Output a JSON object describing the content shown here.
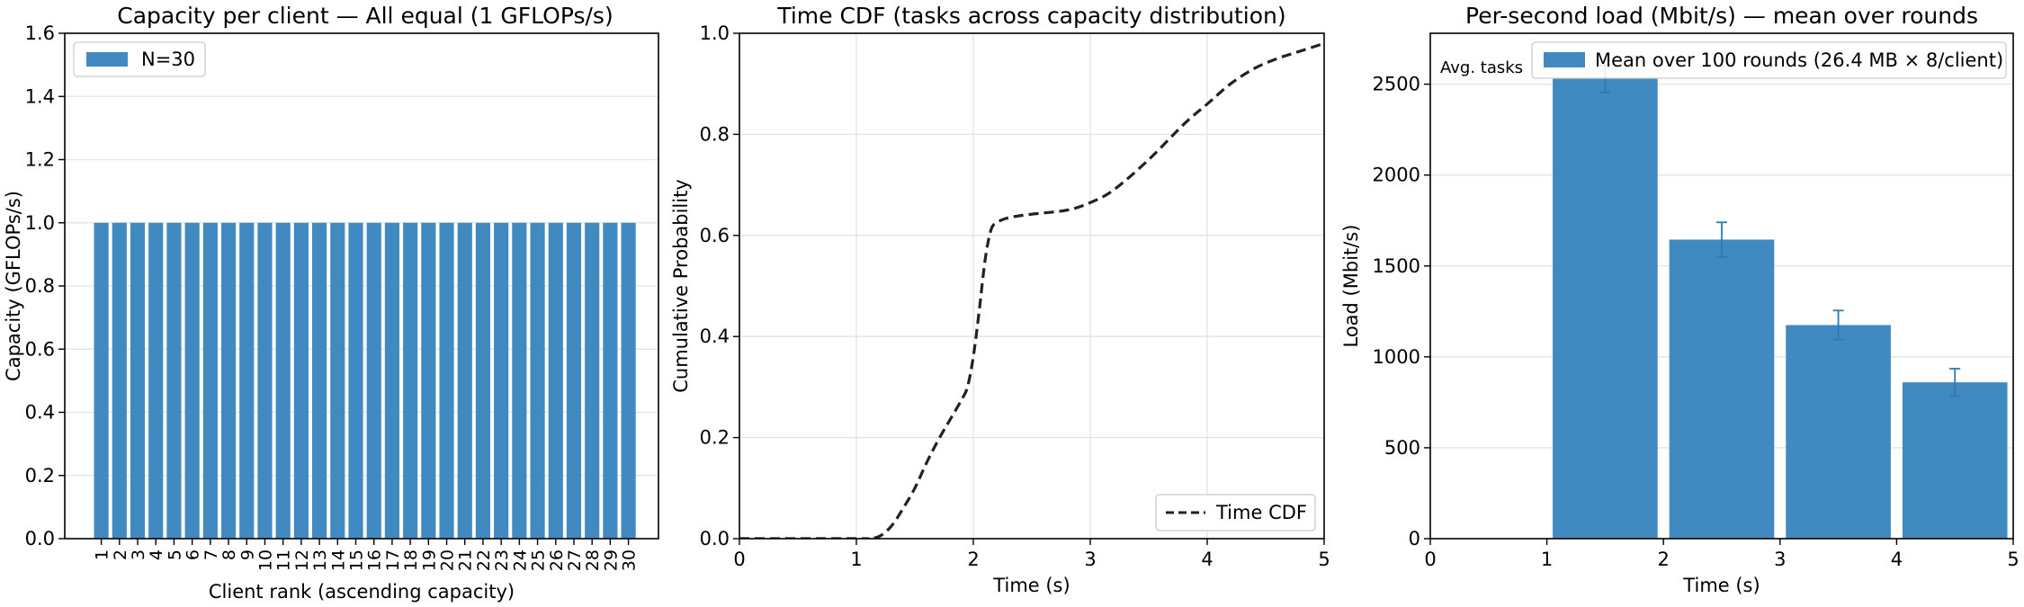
{
  "chart_data": [
    {
      "type": "bar",
      "title": "Capacity per client — All equal (1 GFLOPs/s)",
      "xlabel": "Client rank (ascending capacity)",
      "ylabel": "Capacity (GFLOPs/s)",
      "categories": [
        "1",
        "2",
        "3",
        "4",
        "5",
        "6",
        "7",
        "8",
        "9",
        "10",
        "11",
        "12",
        "13",
        "14",
        "15",
        "16",
        "17",
        "18",
        "19",
        "20",
        "21",
        "22",
        "23",
        "24",
        "25",
        "26",
        "27",
        "28",
        "29",
        "30"
      ],
      "series": [
        {
          "name": "N=30",
          "values": [
            1,
            1,
            1,
            1,
            1,
            1,
            1,
            1,
            1,
            1,
            1,
            1,
            1,
            1,
            1,
            1,
            1,
            1,
            1,
            1,
            1,
            1,
            1,
            1,
            1,
            1,
            1,
            1,
            1,
            1
          ]
        }
      ],
      "ylim": [
        0,
        1.6
      ],
      "yticks": [
        0.0,
        0.2,
        0.4,
        0.6,
        0.8,
        1.0,
        1.2,
        1.4,
        1.6
      ],
      "ytick_labels": [
        "0.0",
        "0.2",
        "0.4",
        "0.6",
        "0.8",
        "1.0",
        "1.2",
        "1.4",
        "1.6"
      ],
      "grid": "y",
      "legend": "top-left",
      "color": "#4189c1"
    },
    {
      "type": "line",
      "title": "Time CDF (tasks across capacity distribution)",
      "xlabel": "Time (s)",
      "ylabel": "Cumulative Probability",
      "xlim": [
        0,
        5
      ],
      "ylim": [
        0,
        1.0
      ],
      "xticks": [
        0,
        1,
        2,
        3,
        4,
        5
      ],
      "xtick_labels": [
        "0",
        "1",
        "2",
        "3",
        "4",
        "5"
      ],
      "yticks": [
        0.0,
        0.2,
        0.4,
        0.6,
        0.8,
        1.0
      ],
      "ytick_labels": [
        "0.0",
        "0.2",
        "0.4",
        "0.6",
        "0.8",
        "1.0"
      ],
      "series": [
        {
          "name": "Time CDF",
          "x": [
            0,
            1.0,
            1.1,
            1.2,
            1.3,
            1.4,
            1.5,
            1.6,
            1.7,
            1.8,
            1.9,
            1.95,
            2.0,
            2.05,
            2.1,
            2.15,
            2.2,
            2.3,
            2.5,
            2.8,
            3.0,
            3.2,
            3.5,
            3.8,
            4.0,
            4.2,
            4.4,
            4.6,
            4.8,
            5.0
          ],
          "y": [
            0,
            0,
            0.0,
            0.005,
            0.025,
            0.06,
            0.1,
            0.15,
            0.195,
            0.235,
            0.275,
            0.3,
            0.36,
            0.45,
            0.55,
            0.61,
            0.625,
            0.635,
            0.642,
            0.65,
            0.665,
            0.69,
            0.75,
            0.82,
            0.86,
            0.9,
            0.93,
            0.95,
            0.965,
            0.98
          ]
        }
      ],
      "grid": "both",
      "legend": "bottom-right",
      "color": "#222222"
    },
    {
      "type": "bar",
      "title": "Per-second load (Mbit/s) — mean over rounds",
      "xlabel": "Time (s)",
      "ylabel": "Load (Mbit/s)",
      "bins": [
        [
          0,
          1
        ],
        [
          1,
          2
        ],
        [
          2,
          3
        ],
        [
          3,
          4
        ],
        [
          4,
          5
        ]
      ],
      "series": [
        {
          "name": "Mean over 100 rounds (26.4 MB × 8/client)",
          "values": [
            0,
            2530,
            1645,
            1175,
            860
          ],
          "errors": [
            0,
            75,
            95,
            80,
            75
          ]
        }
      ],
      "xlim": [
        0,
        5
      ],
      "ylim": [
        0,
        2780
      ],
      "xticks": [
        0,
        1,
        2,
        3,
        4,
        5
      ],
      "xtick_labels": [
        "0",
        "1",
        "2",
        "3",
        "4",
        "5"
      ],
      "yticks": [
        0,
        500,
        1000,
        1500,
        2000,
        2500
      ],
      "ytick_labels": [
        "0",
        "500",
        "1000",
        "1500",
        "2000",
        "2500"
      ],
      "annotation": "Avg. tasks",
      "grid": "y",
      "legend": "top-right",
      "color": "#4189c1"
    }
  ]
}
